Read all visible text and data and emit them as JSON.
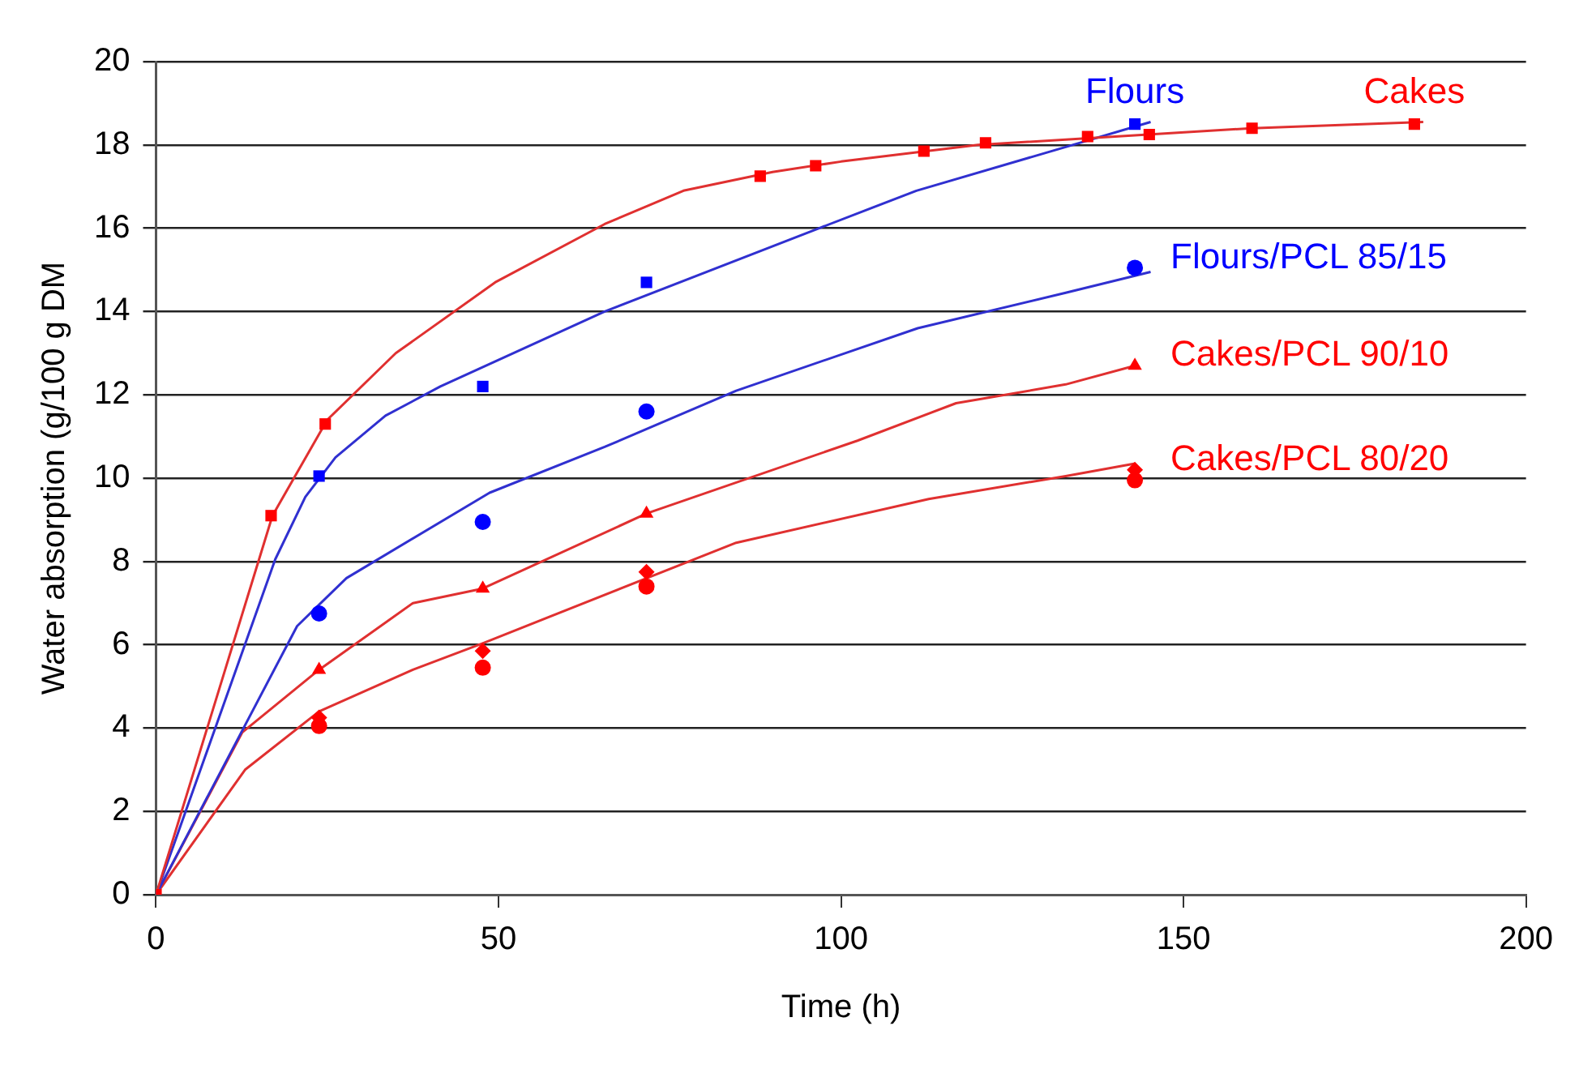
{
  "chart_data": {
    "type": "scatter",
    "xlabel": "Time (h)",
    "ylabel": "Water absorption (g/100 g DM",
    "xlim": [
      0,
      200
    ],
    "xticks": [
      0,
      50,
      100,
      150,
      200
    ],
    "ylim": [
      0,
      20
    ],
    "yticks": [
      0,
      2,
      4,
      6,
      8,
      10,
      12,
      14,
      16,
      18,
      20
    ],
    "grid": "y",
    "legend": false,
    "series": [
      {
        "name": "Flours",
        "type": "scatter",
        "marker": "square",
        "color": "#0000ff",
        "x": [
          23.8,
          47.7,
          71.6,
          142.9
        ],
        "values": [
          10.05,
          12.2,
          14.7,
          18.5
        ]
      },
      {
        "name": "Cakes",
        "type": "scatter",
        "marker": "square",
        "color": "#ff0000",
        "x": [
          0,
          16.8,
          24.7,
          88.2,
          96.3,
          112.1,
          121.1,
          136,
          145,
          160,
          183.7
        ],
        "values": [
          0,
          9.1,
          11.3,
          17.25,
          17.5,
          17.85,
          18.05,
          18.2,
          18.25,
          18.4,
          18.5
        ]
      },
      {
        "name": "Flours/PCL 85/15",
        "type": "scatter",
        "marker": "circle",
        "color": "#0000ff",
        "x": [
          23.8,
          47.7,
          71.6,
          142.9
        ],
        "values": [
          6.75,
          8.95,
          11.6,
          15.05
        ]
      },
      {
        "name": "Cakes/PCL 90/10",
        "type": "scatter",
        "marker": "triangle",
        "color": "#ff0000",
        "x": [
          23.8,
          47.7,
          71.6,
          142.9
        ],
        "values": [
          5.4,
          7.35,
          9.15,
          12.7
        ]
      },
      {
        "name": "Cakes/PCL 80/20",
        "type": "scatter",
        "marker": "diamond",
        "color": "#ff0000",
        "x": [
          23.8,
          47.7,
          71.6,
          142.9
        ],
        "values": [
          4.25,
          5.85,
          7.75,
          10.2
        ]
      },
      {
        "type": "scatter",
        "marker": "circle",
        "color": "#ff0000",
        "x": [
          23.8,
          47.7,
          71.6,
          142.9
        ],
        "values": [
          4.05,
          5.45,
          7.4,
          9.95
        ]
      },
      {
        "type": "line",
        "marker": "none",
        "color": "#e03030",
        "x": [
          0,
          17,
          25,
          35,
          49.5,
          65.5,
          77,
          90,
          100,
          120,
          140,
          160,
          185
        ],
        "values": [
          0,
          9.1,
          11.4,
          13.0,
          14.7,
          16.1,
          16.9,
          17.35,
          17.6,
          18.0,
          18.2,
          18.4,
          18.55
        ]
      },
      {
        "type": "line",
        "marker": "none",
        "color": "#3030d0",
        "x": [
          0,
          17.4,
          21.8,
          26.2,
          33.5,
          41.5,
          65.5,
          96.8,
          111,
          132.8,
          145.2
        ],
        "values": [
          0,
          8.05,
          9.55,
          10.5,
          11.5,
          12.2,
          14.0,
          16.0,
          16.9,
          17.95,
          18.55
        ]
      },
      {
        "type": "line",
        "marker": "none",
        "color": "#3030d0",
        "x": [
          0,
          20.6,
          27.8,
          48.7,
          65.5,
          84.7,
          111.2,
          132.8,
          145.2
        ],
        "values": [
          0,
          6.45,
          7.6,
          9.65,
          10.75,
          12.1,
          13.6,
          14.45,
          14.95
        ]
      },
      {
        "type": "line",
        "marker": "none",
        "color": "#e03030",
        "x": [
          0,
          12.6,
          23.8,
          37.5,
          47.7,
          71.6,
          102.4,
          116.8,
          132.8,
          142.9
        ],
        "values": [
          0,
          3.9,
          5.4,
          7.0,
          7.35,
          9.15,
          10.9,
          11.8,
          12.25,
          12.7
        ]
      },
      {
        "type": "line",
        "marker": "none",
        "color": "#e03030",
        "x": [
          0,
          13,
          23.8,
          37.5,
          47.9,
          84.7,
          112.8,
          132.8,
          142.9
        ],
        "values": [
          0,
          3.0,
          4.4,
          5.4,
          6.05,
          8.45,
          9.5,
          10.05,
          10.35
        ]
      }
    ]
  }
}
